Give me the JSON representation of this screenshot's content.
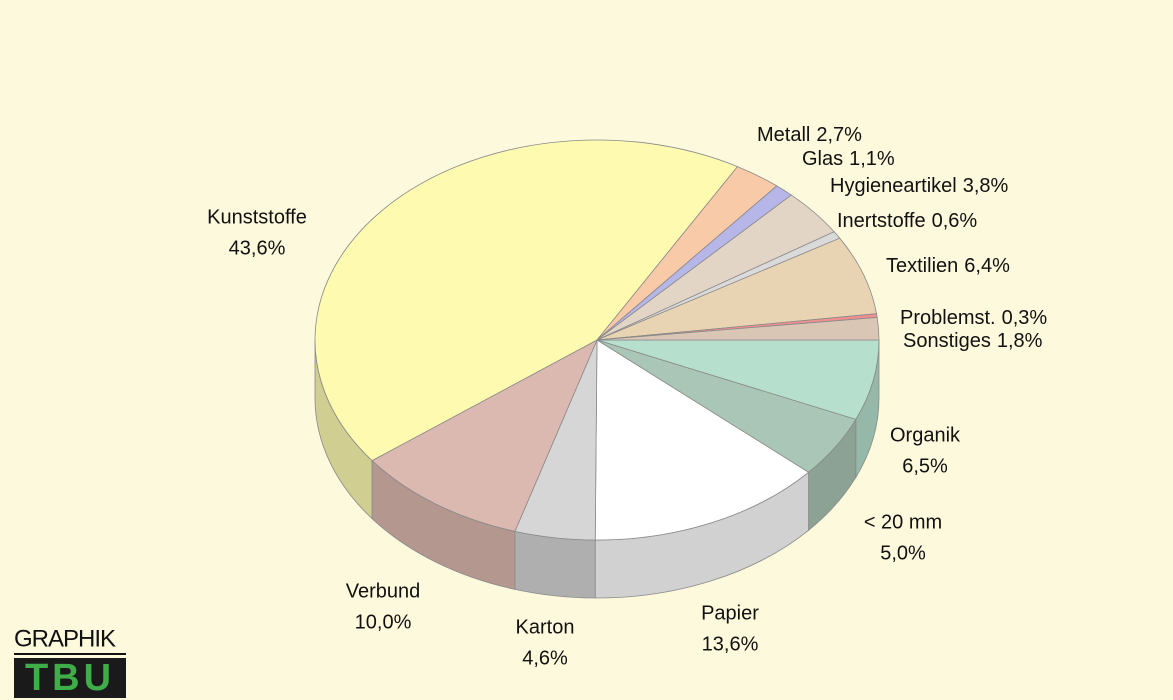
{
  "chart_data": {
    "type": "pie3d",
    "categories": [
      "Organik",
      "< 20 mm",
      "Papier",
      "Karton",
      "Verbund",
      "Kunststoffe",
      "Metall",
      "Glas",
      "Hygieneartikel",
      "Inertstoffe",
      "Textilien",
      "Problemst.",
      "Sonstiges"
    ],
    "values": [
      6.5,
      5.0,
      13.6,
      4.6,
      10.0,
      43.6,
      2.7,
      1.1,
      3.8,
      0.6,
      6.4,
      0.3,
      1.8
    ],
    "value_labels": [
      "6,5%",
      "5,0%",
      "13,6%",
      "4,6%",
      "10,0%",
      "43,6%",
      "2,7%",
      "1,1%",
      "3,8%",
      "0,6%",
      "6,4%",
      "0,3%",
      "1,8%"
    ],
    "colors": [
      "#b6e0cd",
      "#a9c6b6",
      "#ffffff",
      "#d6d6d6",
      "#dcb9b0",
      "#fefbb0",
      "#f8caa8",
      "#b6b6e8",
      "#e3d5c6",
      "#dadada",
      "#e8d4b2",
      "#ef8f8f",
      "#dac6b4"
    ]
  },
  "logo": {
    "top": "GRAPHIK",
    "bottom": "TBU"
  }
}
